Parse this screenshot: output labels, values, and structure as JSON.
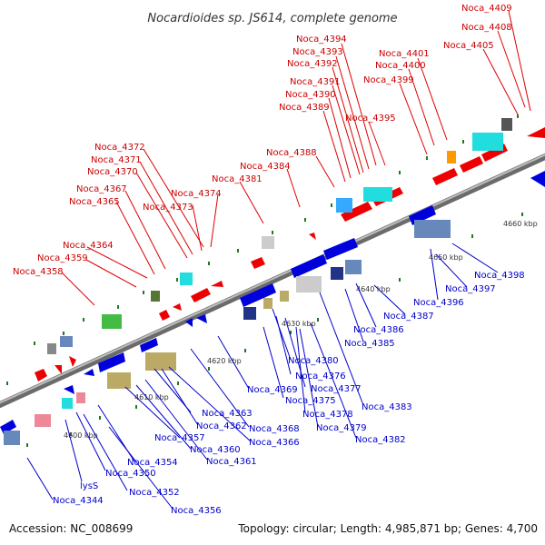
{
  "title": "Nocardioides sp. JS614, complete genome",
  "footer": {
    "accession": "Accession: NC_008699",
    "topology": "Topology: circular; Length: 4,985,871 bp; Genes: 4,700"
  },
  "kbp_labels": [
    "4600 kbp",
    "4610 kbp",
    "4620 kbp",
    "4630 kbp",
    "4640 kbp",
    "4650 kbp",
    "4660 kbp"
  ],
  "top_labels": [
    "Noca_4409",
    "Noca_4408",
    "Noca_4405",
    "Noca_4401",
    "Noca_4400",
    "Noca_4399",
    "Noca_4394",
    "Noca_4393",
    "Noca_4392",
    "Noca_4391",
    "Noca_4390",
    "Noca_4389",
    "Noca_4395",
    "Noca_4388",
    "Noca_4384",
    "Noca_4381",
    "Noca_4374",
    "Noca_4373",
    "Noca_4372",
    "Noca_4371",
    "Noca_4370",
    "Noca_4367",
    "Noca_4365",
    "Noca_4364",
    "Noca_4359",
    "Noca_4358"
  ],
  "bottom_labels": [
    "Noca_4398",
    "Noca_4397",
    "Noca_4396",
    "Noca_4387",
    "Noca_4386",
    "Noca_4385",
    "Noca_4380",
    "Noca_4376",
    "Noca_4377",
    "Noca_4375",
    "Noca_4369",
    "Noca_4383",
    "Noca_4378",
    "Noca_4379",
    "Noca_4382",
    "Noca_4363",
    "Noca_4362",
    "Noca_4368",
    "Noca_4366",
    "Noca_4357",
    "Noca_4360",
    "Noca_4361",
    "Noca_4354",
    "Noca_4350",
    "lysS",
    "Noca_4352",
    "Noca_4344",
    "Noca_4356"
  ],
  "colors": {
    "forward": "#ee0000",
    "reverse": "#0000dd",
    "backbone": "#999999",
    "tick": "#227722"
  }
}
